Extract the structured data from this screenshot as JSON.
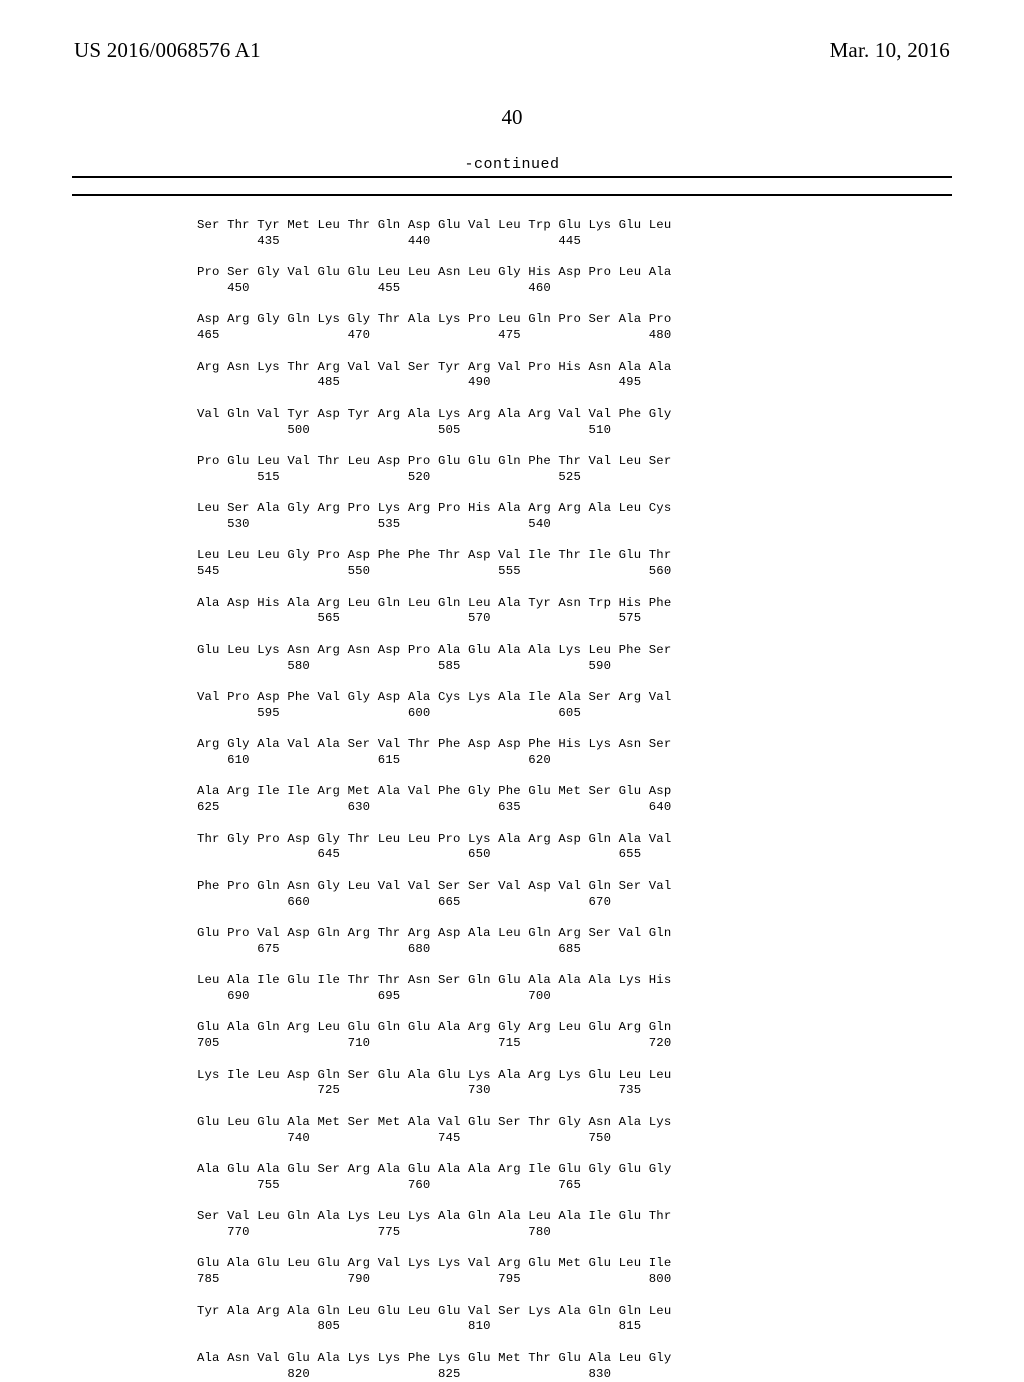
{
  "header": {
    "publication_number": "US 2016/0068576 A1",
    "publication_date": "Mar. 10, 2016"
  },
  "page_number": "40",
  "continued_label": "-continued",
  "sequence_lines": [
    "Ser Thr Tyr Met Leu Thr Gln Asp Glu Val Leu Trp Glu Lys Glu Leu",
    "        435                 440                 445",
    "",
    "Pro Ser Gly Val Glu Glu Leu Leu Asn Leu Gly His Asp Pro Leu Ala",
    "    450                 455                 460",
    "",
    "Asp Arg Gly Gln Lys Gly Thr Ala Lys Pro Leu Gln Pro Ser Ala Pro",
    "465                 470                 475                 480",
    "",
    "Arg Asn Lys Thr Arg Val Val Ser Tyr Arg Val Pro His Asn Ala Ala",
    "                485                 490                 495",
    "",
    "Val Gln Val Tyr Asp Tyr Arg Ala Lys Arg Ala Arg Val Val Phe Gly",
    "            500                 505                 510",
    "",
    "Pro Glu Leu Val Thr Leu Asp Pro Glu Glu Gln Phe Thr Val Leu Ser",
    "        515                 520                 525",
    "",
    "Leu Ser Ala Gly Arg Pro Lys Arg Pro His Ala Arg Arg Ala Leu Cys",
    "    530                 535                 540",
    "",
    "Leu Leu Leu Gly Pro Asp Phe Phe Thr Asp Val Ile Thr Ile Glu Thr",
    "545                 550                 555                 560",
    "",
    "Ala Asp His Ala Arg Leu Gln Leu Gln Leu Ala Tyr Asn Trp His Phe",
    "                565                 570                 575",
    "",
    "Glu Leu Lys Asn Arg Asn Asp Pro Ala Glu Ala Ala Lys Leu Phe Ser",
    "            580                 585                 590",
    "",
    "Val Pro Asp Phe Val Gly Asp Ala Cys Lys Ala Ile Ala Ser Arg Val",
    "        595                 600                 605",
    "",
    "Arg Gly Ala Val Ala Ser Val Thr Phe Asp Asp Phe His Lys Asn Ser",
    "    610                 615                 620",
    "",
    "Ala Arg Ile Ile Arg Met Ala Val Phe Gly Phe Glu Met Ser Glu Asp",
    "625                 630                 635                 640",
    "",
    "Thr Gly Pro Asp Gly Thr Leu Leu Pro Lys Ala Arg Asp Gln Ala Val",
    "                645                 650                 655",
    "",
    "Phe Pro Gln Asn Gly Leu Val Val Ser Ser Val Asp Val Gln Ser Val",
    "            660                 665                 670",
    "",
    "Glu Pro Val Asp Gln Arg Thr Arg Asp Ala Leu Gln Arg Ser Val Gln",
    "        675                 680                 685",
    "",
    "Leu Ala Ile Glu Ile Thr Thr Asn Ser Gln Glu Ala Ala Ala Lys His",
    "    690                 695                 700",
    "",
    "Glu Ala Gln Arg Leu Glu Gln Glu Ala Arg Gly Arg Leu Glu Arg Gln",
    "705                 710                 715                 720",
    "",
    "Lys Ile Leu Asp Gln Ser Glu Ala Glu Lys Ala Arg Lys Glu Leu Leu",
    "                725                 730                 735",
    "",
    "Glu Leu Glu Ala Met Ser Met Ala Val Glu Ser Thr Gly Asn Ala Lys",
    "            740                 745                 750",
    "",
    "Ala Glu Ala Glu Ser Arg Ala Glu Ala Ala Arg Ile Glu Gly Glu Gly",
    "        755                 760                 765",
    "",
    "Ser Val Leu Gln Ala Lys Leu Lys Ala Gln Ala Leu Ala Ile Glu Thr",
    "    770                 775                 780",
    "",
    "Glu Ala Glu Leu Glu Arg Val Lys Lys Val Arg Glu Met Glu Leu Ile",
    "785                 790                 795                 800",
    "",
    "Tyr Ala Arg Ala Gln Leu Glu Leu Glu Val Ser Lys Ala Gln Gln Leu",
    "                805                 810                 815",
    "",
    "Ala Asn Val Glu Ala Lys Lys Phe Lys Glu Met Thr Glu Ala Leu Gly",
    "            820                 825                 830"
  ]
}
